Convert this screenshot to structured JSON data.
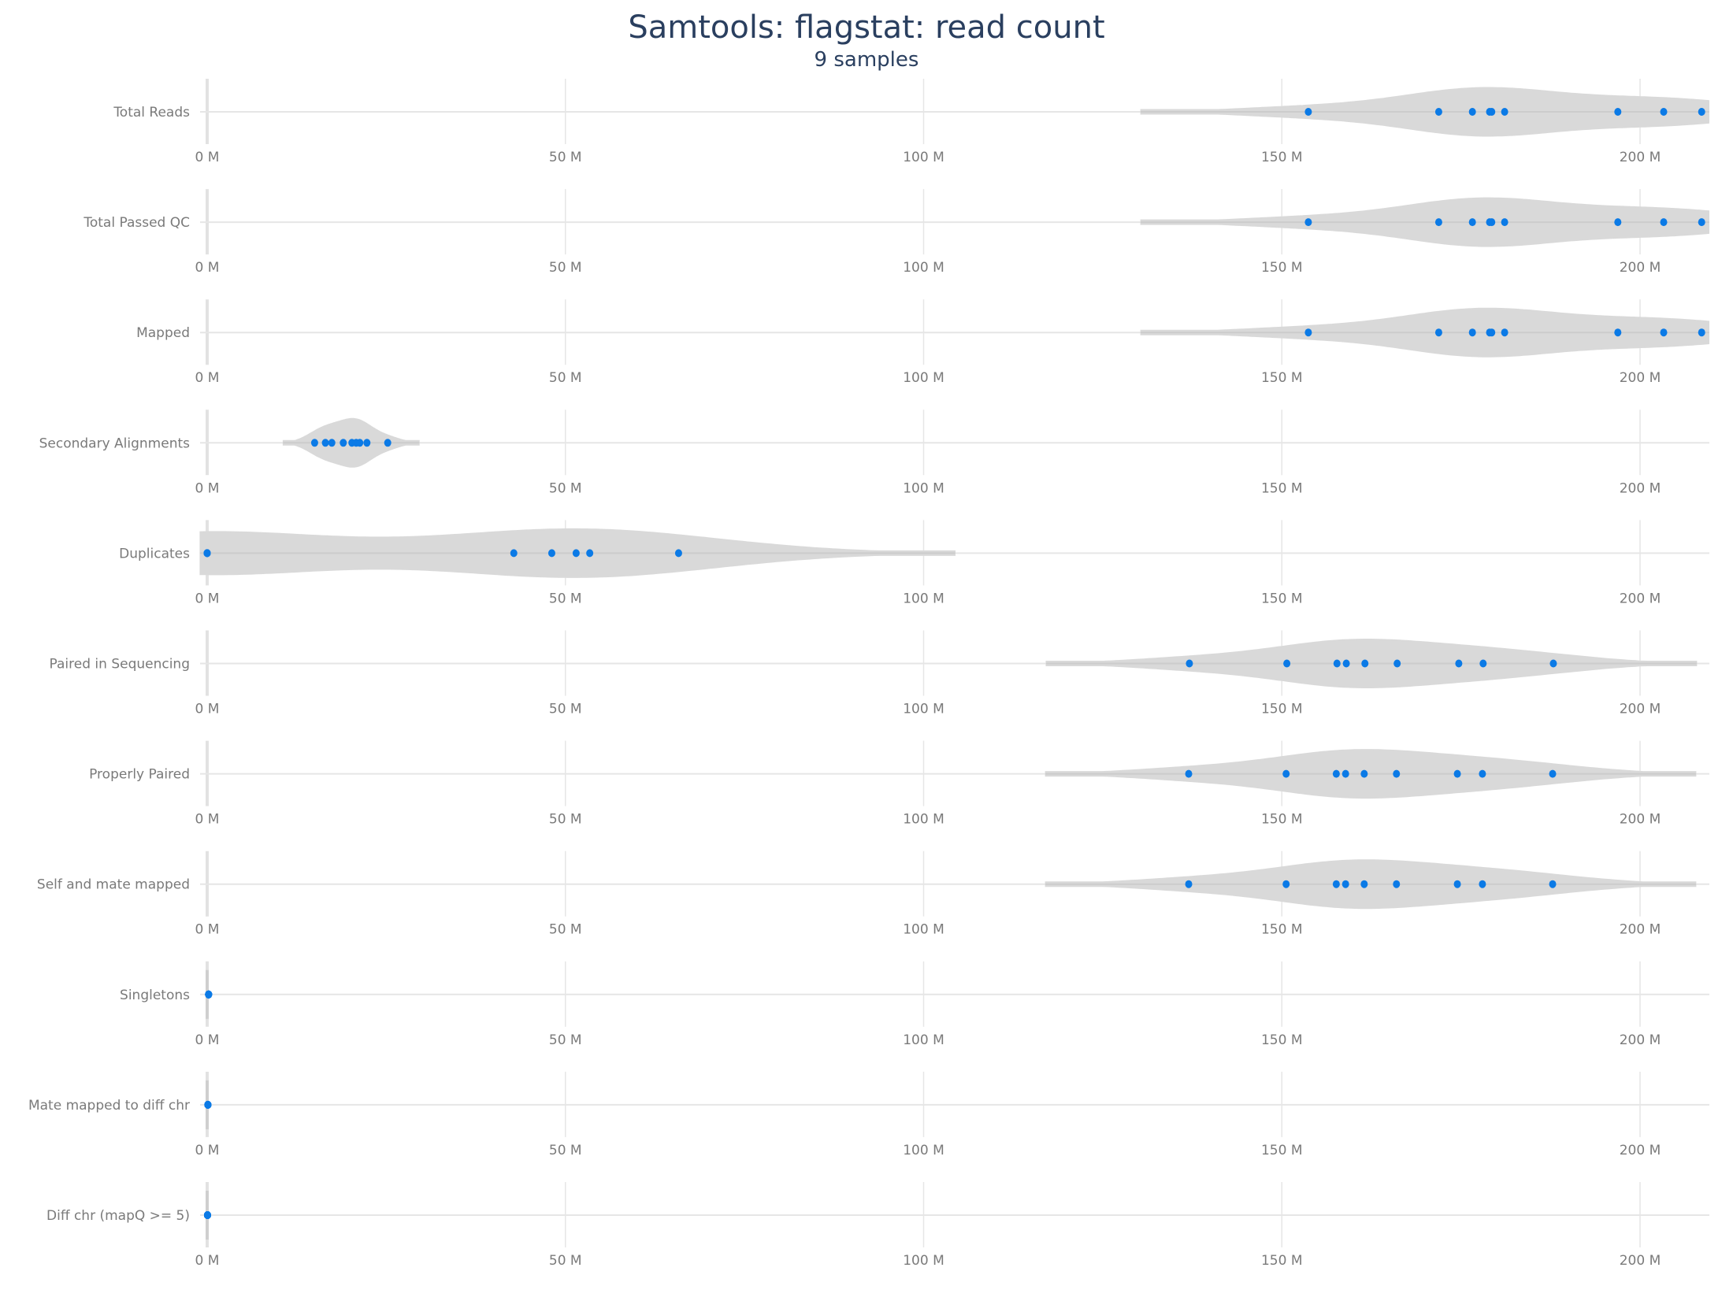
{
  "chart_data": {
    "type": "violin",
    "title": "Samtools: flagstat: read count",
    "subtitle": "9 samples",
    "xlabel": "",
    "ylabel": "",
    "xlim": [
      0,
      209.7
    ],
    "x_unit": "M",
    "x_ticks": [
      0,
      50,
      100,
      150,
      200
    ],
    "x_tick_labels": [
      "0 M",
      "50 M",
      "100 M",
      "150 M",
      "200 M"
    ],
    "grid": true,
    "colors": {
      "point": "#0b7ae6",
      "violin": "#d9d9d9",
      "grid": "#e6e6e6",
      "zero_line": "#e2e2e2",
      "title": "#2a3f5f",
      "label": "#7a7a7a"
    },
    "series": [
      {
        "name": "Total Reads",
        "kde_range": [
          130.3,
          212.5
        ],
        "values": [
          153.7,
          171.9,
          176.6,
          179.0,
          179.3,
          181.1,
          196.9,
          203.3,
          208.6
        ]
      },
      {
        "name": "Total Passed QC",
        "kde_range": [
          130.3,
          212.5
        ],
        "values": [
          153.7,
          171.9,
          176.6,
          179.0,
          179.3,
          181.1,
          196.9,
          203.3,
          208.6
        ]
      },
      {
        "name": "Mapped",
        "kde_range": [
          130.3,
          212.5
        ],
        "values": [
          153.7,
          171.9,
          176.6,
          179.0,
          179.3,
          181.1,
          196.9,
          203.3,
          208.6
        ]
      },
      {
        "name": "Secondary Alignments",
        "kde_range": [
          10.6,
          29.6
        ],
        "values": [
          15.0,
          16.5,
          17.4,
          19.0,
          20.2,
          20.8,
          21.3,
          22.3,
          25.2
        ]
      },
      {
        "name": "Duplicates",
        "kde_range": [
          -1.0,
          104.4
        ],
        "values": [
          0.0,
          0.0,
          0.0,
          0.0,
          42.8,
          48.1,
          51.5,
          53.4,
          65.8
        ]
      },
      {
        "name": "Paired in Sequencing",
        "kde_range": [
          117.1,
          207.9
        ],
        "values": [
          137.1,
          150.7,
          157.7,
          159.0,
          161.6,
          166.1,
          174.7,
          178.1,
          187.9
        ]
      },
      {
        "name": "Properly Paired",
        "kde_range": [
          117.0,
          207.8
        ],
        "values": [
          137.0,
          150.6,
          157.6,
          158.9,
          161.5,
          166.0,
          174.5,
          178.0,
          187.8
        ]
      },
      {
        "name": "Self and mate mapped",
        "kde_range": [
          117.0,
          207.8
        ],
        "values": [
          137.0,
          150.6,
          157.6,
          158.9,
          161.5,
          166.0,
          174.5,
          178.0,
          187.8
        ]
      },
      {
        "name": "Singletons",
        "kde_range": [
          0.0,
          0.0
        ],
        "values": [
          0.2,
          0.2,
          0.2,
          0.2,
          0.2,
          0.2,
          0.2,
          0.2,
          0.2
        ]
      },
      {
        "name": "Mate mapped to diff chr",
        "kde_range": [
          0.0,
          0.0
        ],
        "values": [
          0.1,
          0.1,
          0.1,
          0.1,
          0.1,
          0.1,
          0.1,
          0.1,
          0.1
        ]
      },
      {
        "name": "Diff chr (mapQ >= 5)",
        "kde_range": [
          0.0,
          0.0
        ],
        "values": [
          0.05,
          0.05,
          0.05,
          0.05,
          0.05,
          0.05,
          0.05,
          0.05,
          0.05
        ]
      }
    ]
  }
}
